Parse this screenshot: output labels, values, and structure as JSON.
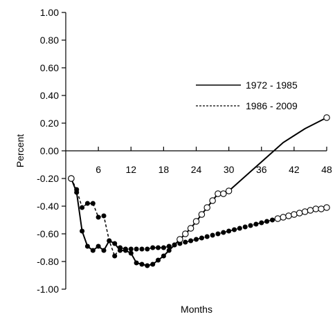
{
  "chart_data": {
    "type": "line",
    "xlabel": "Months",
    "ylabel": "Percent",
    "xlim": [
      0,
      48
    ],
    "ylim": [
      -1.0,
      1.0
    ],
    "x_ticks": [
      6,
      12,
      18,
      24,
      30,
      36,
      42,
      48
    ],
    "y_ticks": [
      1.0,
      0.8,
      0.6,
      0.4,
      0.2,
      0.0,
      -0.2,
      -0.4,
      -0.6,
      -0.8,
      -1.0
    ],
    "y_tick_labels": [
      "1.00",
      "0.80",
      "0.60",
      "0.40",
      "0.20",
      "0.00",
      "-0.20",
      "-0.40",
      "-0.60",
      "-0.80",
      "-1.00"
    ],
    "grid": false,
    "legend_position": "right",
    "series": [
      {
        "name": "1972 - 1985",
        "style": "solid",
        "x": [
          1,
          2,
          3,
          4,
          5,
          6,
          7,
          8,
          9,
          10,
          11,
          12,
          13,
          14,
          15,
          16,
          17,
          18,
          19,
          20,
          21,
          22,
          23,
          24,
          25,
          26,
          27,
          28,
          29,
          30,
          32,
          34,
          36,
          38,
          40,
          42,
          44,
          46,
          48
        ],
        "y": [
          -0.2,
          -0.3,
          -0.58,
          -0.69,
          -0.72,
          -0.69,
          -0.72,
          -0.65,
          -0.67,
          -0.72,
          -0.72,
          -0.74,
          -0.81,
          -0.82,
          -0.83,
          -0.82,
          -0.79,
          -0.76,
          -0.72,
          -0.68,
          -0.64,
          -0.6,
          -0.56,
          -0.51,
          -0.46,
          -0.41,
          -0.36,
          -0.31,
          -0.31,
          -0.29,
          -0.22,
          -0.15,
          -0.08,
          -0.01,
          0.06,
          0.11,
          0.16,
          0.2,
          0.24
        ],
        "filled": [
          false,
          true,
          true,
          true,
          true,
          true,
          true,
          true,
          true,
          true,
          true,
          true,
          true,
          true,
          true,
          true,
          true,
          true,
          true,
          true,
          false,
          false,
          false,
          false,
          false,
          false,
          false,
          false,
          false,
          false,
          null,
          null,
          null,
          null,
          null,
          null,
          null,
          null,
          false
        ]
      },
      {
        "name": "1986 - 2009",
        "style": "dashed",
        "x": [
          1,
          2,
          3,
          4,
          5,
          6,
          7,
          8,
          9,
          10,
          11,
          12,
          13,
          14,
          15,
          16,
          17,
          18,
          19,
          20,
          21,
          22,
          23,
          24,
          25,
          26,
          27,
          28,
          29,
          30,
          31,
          32,
          33,
          34,
          35,
          36,
          37,
          38,
          39,
          40,
          41,
          42,
          43,
          44,
          45,
          46,
          47,
          48
        ],
        "y": [
          -0.2,
          -0.28,
          -0.41,
          -0.38,
          -0.38,
          -0.48,
          -0.47,
          -0.65,
          -0.76,
          -0.7,
          -0.71,
          -0.71,
          -0.71,
          -0.71,
          -0.71,
          -0.7,
          -0.7,
          -0.7,
          -0.69,
          -0.68,
          -0.67,
          -0.66,
          -0.65,
          -0.64,
          -0.63,
          -0.62,
          -0.61,
          -0.6,
          -0.59,
          -0.58,
          -0.57,
          -0.56,
          -0.55,
          -0.54,
          -0.53,
          -0.52,
          -0.51,
          -0.5,
          -0.49,
          -0.48,
          -0.47,
          -0.46,
          -0.45,
          -0.44,
          -0.43,
          -0.42,
          -0.42,
          -0.41
        ],
        "filled": [
          false,
          true,
          true,
          true,
          true,
          true,
          true,
          true,
          true,
          true,
          true,
          true,
          true,
          true,
          true,
          true,
          true,
          true,
          true,
          true,
          true,
          true,
          true,
          true,
          true,
          true,
          true,
          true,
          true,
          true,
          true,
          true,
          true,
          true,
          true,
          true,
          true,
          true,
          false,
          false,
          false,
          false,
          false,
          false,
          false,
          false,
          false,
          false
        ]
      }
    ]
  }
}
